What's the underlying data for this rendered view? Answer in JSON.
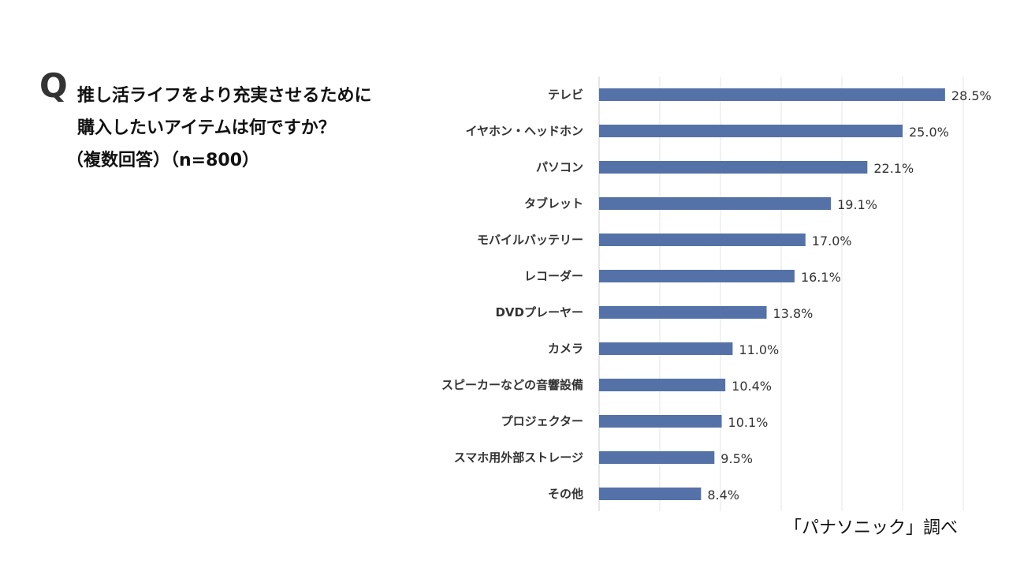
{
  "question": {
    "mark": "Q",
    "line1": "推し活ライフをより充実させるために",
    "line2": "購入したいアイテムは何ですか？",
    "line3": "（複数回答）（n=800）"
  },
  "source": "「パナソニック」調べ",
  "colors": {
    "bar": "#5472a8",
    "grid": "#e6e6e6",
    "label": "#333333"
  },
  "chart_data": {
    "type": "bar",
    "orientation": "horizontal",
    "categories": [
      "テレビ",
      "イヤホン・ヘッドホン",
      "パソコン",
      "タブレット",
      "モバイルバッテリー",
      "レコーダー",
      "DVDプレーヤー",
      "カメラ",
      "スピーカーなどの音響設備",
      "プロジェクター",
      "スマホ用外部ストレージ",
      "その他"
    ],
    "values": [
      28.5,
      25.0,
      22.1,
      19.1,
      17.0,
      16.1,
      13.8,
      11.0,
      10.4,
      10.1,
      9.5,
      8.4
    ],
    "value_labels": [
      "28.5%",
      "25.0%",
      "22.1%",
      "19.1%",
      "17.0%",
      "16.1%",
      "13.8%",
      "11.0%",
      "10.4%",
      "10.1%",
      "9.5%",
      "8.4%"
    ],
    "xlim": [
      0,
      30
    ],
    "grid": true,
    "legend": "none"
  }
}
